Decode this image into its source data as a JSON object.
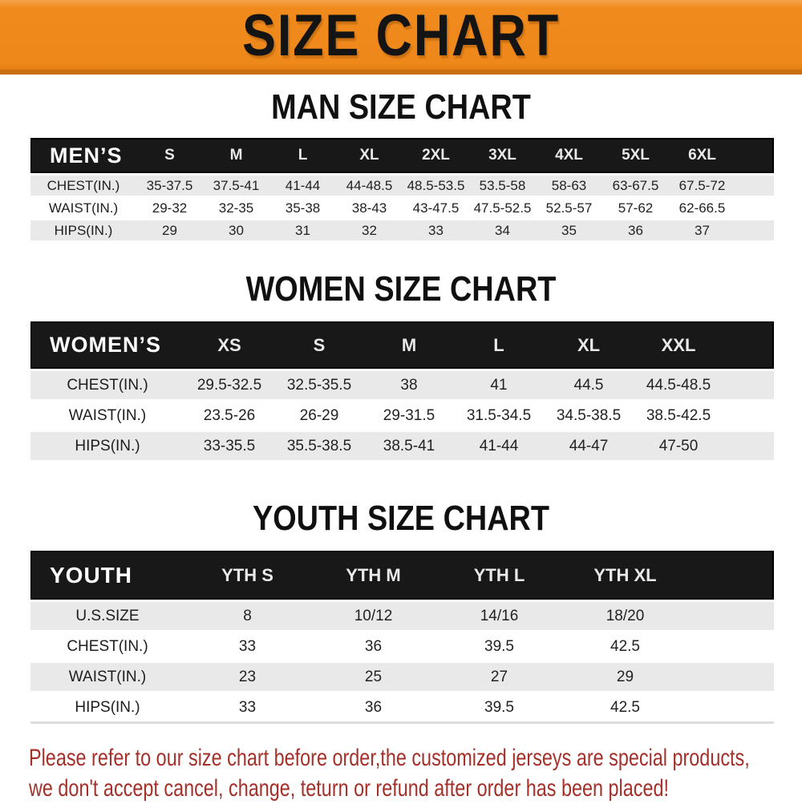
{
  "banner": {
    "title": "SIZE CHART"
  },
  "sections": [
    {
      "key": "men",
      "heading": "MAN SIZE CHART",
      "table": {
        "label": "MEN’S",
        "columns": [
          "S",
          "M",
          "L",
          "XL",
          "2XL",
          "3XL",
          "4XL",
          "5XL",
          "6XL"
        ],
        "rows": [
          {
            "label": "CHEST(IN.)",
            "values": [
              "35-37.5",
              "37.5-41",
              "41-44",
              "44-48.5",
              "48.5-53.5",
              "53.5-58",
              "58-63",
              "63-67.5",
              "67.5-72"
            ]
          },
          {
            "label": "WAIST(IN.)",
            "values": [
              "29-32",
              "32-35",
              "35-38",
              "38-43",
              "43-47.5",
              "47.5-52.5",
              "52.5-57",
              "57-62",
              "62-66.5"
            ]
          },
          {
            "label": "HIPS(IN.)",
            "values": [
              "29",
              "30",
              "31",
              "32",
              "33",
              "34",
              "35",
              "36",
              "37"
            ]
          }
        ]
      }
    },
    {
      "key": "women",
      "heading": "WOMEN SIZE CHART",
      "table": {
        "label": "WOMEN’S",
        "columns": [
          "XS",
          "S",
          "M",
          "L",
          "XL",
          "XXL"
        ],
        "rows": [
          {
            "label": "CHEST(IN.)",
            "values": [
              "29.5-32.5",
              "32.5-35.5",
              "38",
              "41",
              "44.5",
              "44.5-48.5"
            ]
          },
          {
            "label": "WAIST(IN.)",
            "values": [
              "23.5-26",
              "26-29",
              "29-31.5",
              "31.5-34.5",
              "34.5-38.5",
              "38.5-42.5"
            ]
          },
          {
            "label": "HIPS(IN.)",
            "values": [
              "33-35.5",
              "35.5-38.5",
              "38.5-41",
              "41-44",
              "44-47",
              "47-50"
            ]
          }
        ]
      }
    },
    {
      "key": "youth",
      "heading": "YOUTH SIZE CHART",
      "table": {
        "label": "YOUTH",
        "columns": [
          "YTH S",
          "YTH M",
          "YTH L",
          "YTH XL"
        ],
        "rows": [
          {
            "label": "U.S.SIZE",
            "values": [
              "8",
              "10/12",
              "14/16",
              "18/20"
            ]
          },
          {
            "label": "CHEST(IN.)",
            "values": [
              "33",
              "36",
              "39.5",
              "42.5"
            ]
          },
          {
            "label": "WAIST(IN.)",
            "values": [
              "23",
              "25",
              "27",
              "29"
            ]
          },
          {
            "label": "HIPS(IN.)",
            "values": [
              "33",
              "36",
              "39.5",
              "42.5"
            ]
          }
        ]
      }
    }
  ],
  "footer": {
    "line1": "Please refer to our size chart before order,the customized jerseys are special products,",
    "line2": "we don't accept cancel, change, teturn or refund after order has been placed!"
  },
  "colors": {
    "banner_orange": "#f08a1d",
    "banner_border": "#c96f10",
    "header_black": "#181818",
    "row_gray": "#e9e9e9",
    "notice_red": "#a5302a",
    "heading_text": "#101010"
  }
}
